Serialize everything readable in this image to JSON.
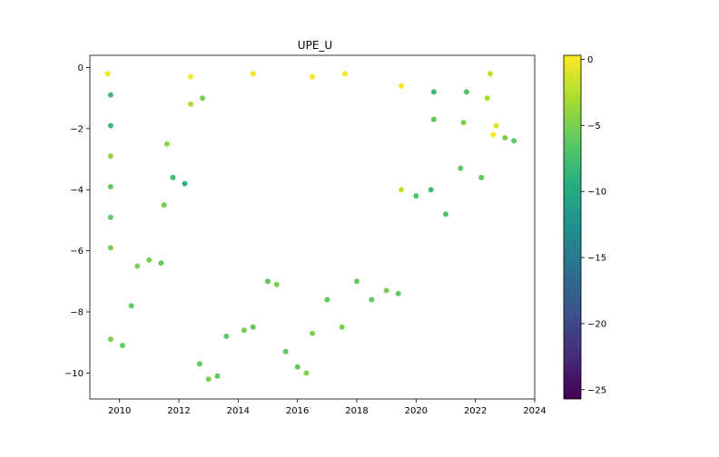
{
  "chart_data": {
    "type": "scatter",
    "title": "UPE_U",
    "xlabel": "",
    "ylabel": "",
    "xlim": [
      2009.0,
      2024.0
    ],
    "ylim": [
      -10.85,
      0.4
    ],
    "x_ticks": [
      2010,
      2012,
      2014,
      2016,
      2018,
      2020,
      2022,
      2024
    ],
    "y_ticks": [
      0,
      -2,
      -4,
      -6,
      -8,
      -10
    ],
    "x_tick_labels": [
      "2010",
      "2012",
      "2014",
      "2016",
      "2018",
      "2020",
      "2022",
      "2024"
    ],
    "y_tick_labels": [
      "0",
      "−2",
      "−4",
      "−6",
      "−8",
      "−10"
    ],
    "colorbar": {
      "colormap": "viridis",
      "range": [
        -25.7,
        0.3
      ],
      "ticks": [
        0,
        -5,
        -10,
        -15,
        -20,
        -25
      ],
      "tick_labels": [
        "0",
        "−5",
        "−10",
        "−15",
        "−20",
        "−25"
      ]
    },
    "series": [
      {
        "points": [
          {
            "x": 2009.6,
            "y": -0.2,
            "c": 0
          },
          {
            "x": 2009.7,
            "y": -0.9,
            "c": -8
          },
          {
            "x": 2009.7,
            "y": -1.9,
            "c": -8
          },
          {
            "x": 2009.7,
            "y": -2.9,
            "c": -4
          },
          {
            "x": 2009.7,
            "y": -3.9,
            "c": -6
          },
          {
            "x": 2009.7,
            "y": -4.9,
            "c": -6
          },
          {
            "x": 2009.7,
            "y": -5.9,
            "c": -5
          },
          {
            "x": 2009.7,
            "y": -8.9,
            "c": -5
          },
          {
            "x": 2010.1,
            "y": -9.1,
            "c": -6
          },
          {
            "x": 2010.4,
            "y": -7.8,
            "c": -6
          },
          {
            "x": 2010.6,
            "y": -6.5,
            "c": -5
          },
          {
            "x": 2011.0,
            "y": -6.3,
            "c": -5
          },
          {
            "x": 2011.4,
            "y": -6.4,
            "c": -6
          },
          {
            "x": 2011.5,
            "y": -4.5,
            "c": -5
          },
          {
            "x": 2011.6,
            "y": -2.5,
            "c": -4
          },
          {
            "x": 2011.8,
            "y": -3.6,
            "c": -8
          },
          {
            "x": 2012.2,
            "y": -3.8,
            "c": -9
          },
          {
            "x": 2012.4,
            "y": -1.2,
            "c": -3
          },
          {
            "x": 2012.4,
            "y": -0.3,
            "c": 0
          },
          {
            "x": 2012.8,
            "y": -1.0,
            "c": -5
          },
          {
            "x": 2012.7,
            "y": -9.7,
            "c": -6
          },
          {
            "x": 2013.0,
            "y": -10.2,
            "c": -5
          },
          {
            "x": 2013.3,
            "y": -10.1,
            "c": -6
          },
          {
            "x": 2013.6,
            "y": -8.8,
            "c": -6
          },
          {
            "x": 2014.2,
            "y": -8.6,
            "c": -5
          },
          {
            "x": 2014.5,
            "y": -8.5,
            "c": -6
          },
          {
            "x": 2014.5,
            "y": -0.2,
            "c": 0
          },
          {
            "x": 2015.0,
            "y": -7.0,
            "c": -6
          },
          {
            "x": 2015.3,
            "y": -7.1,
            "c": -5
          },
          {
            "x": 2015.6,
            "y": -9.3,
            "c": -6
          },
          {
            "x": 2016.0,
            "y": -9.8,
            "c": -6
          },
          {
            "x": 2016.3,
            "y": -10.0,
            "c": -5
          },
          {
            "x": 2016.5,
            "y": -8.7,
            "c": -5
          },
          {
            "x": 2016.5,
            "y": -0.3,
            "c": 0
          },
          {
            "x": 2017.0,
            "y": -7.6,
            "c": -6
          },
          {
            "x": 2017.5,
            "y": -8.5,
            "c": -5
          },
          {
            "x": 2017.6,
            "y": -0.2,
            "c": 0
          },
          {
            "x": 2018.0,
            "y": -7.0,
            "c": -6
          },
          {
            "x": 2018.5,
            "y": -7.6,
            "c": -6
          },
          {
            "x": 2019.0,
            "y": -7.3,
            "c": -5
          },
          {
            "x": 2019.4,
            "y": -7.4,
            "c": -6
          },
          {
            "x": 2019.5,
            "y": -4.0,
            "c": -2
          },
          {
            "x": 2019.5,
            "y": -0.6,
            "c": 0
          },
          {
            "x": 2020.0,
            "y": -4.2,
            "c": -7
          },
          {
            "x": 2020.5,
            "y": -4.0,
            "c": -8
          },
          {
            "x": 2020.6,
            "y": -1.7,
            "c": -6
          },
          {
            "x": 2020.6,
            "y": -0.8,
            "c": -8
          },
          {
            "x": 2021.0,
            "y": -4.8,
            "c": -7
          },
          {
            "x": 2021.5,
            "y": -3.3,
            "c": -6
          },
          {
            "x": 2021.6,
            "y": -1.8,
            "c": -5
          },
          {
            "x": 2021.7,
            "y": -0.8,
            "c": -7
          },
          {
            "x": 2022.2,
            "y": -3.6,
            "c": -6
          },
          {
            "x": 2022.4,
            "y": -1.0,
            "c": -3
          },
          {
            "x": 2022.5,
            "y": -0.2,
            "c": -2
          },
          {
            "x": 2022.6,
            "y": -2.2,
            "c": 0
          },
          {
            "x": 2022.7,
            "y": -1.9,
            "c": -1
          },
          {
            "x": 2023.0,
            "y": -2.3,
            "c": -5
          },
          {
            "x": 2023.3,
            "y": -2.4,
            "c": -6
          }
        ]
      }
    ]
  }
}
